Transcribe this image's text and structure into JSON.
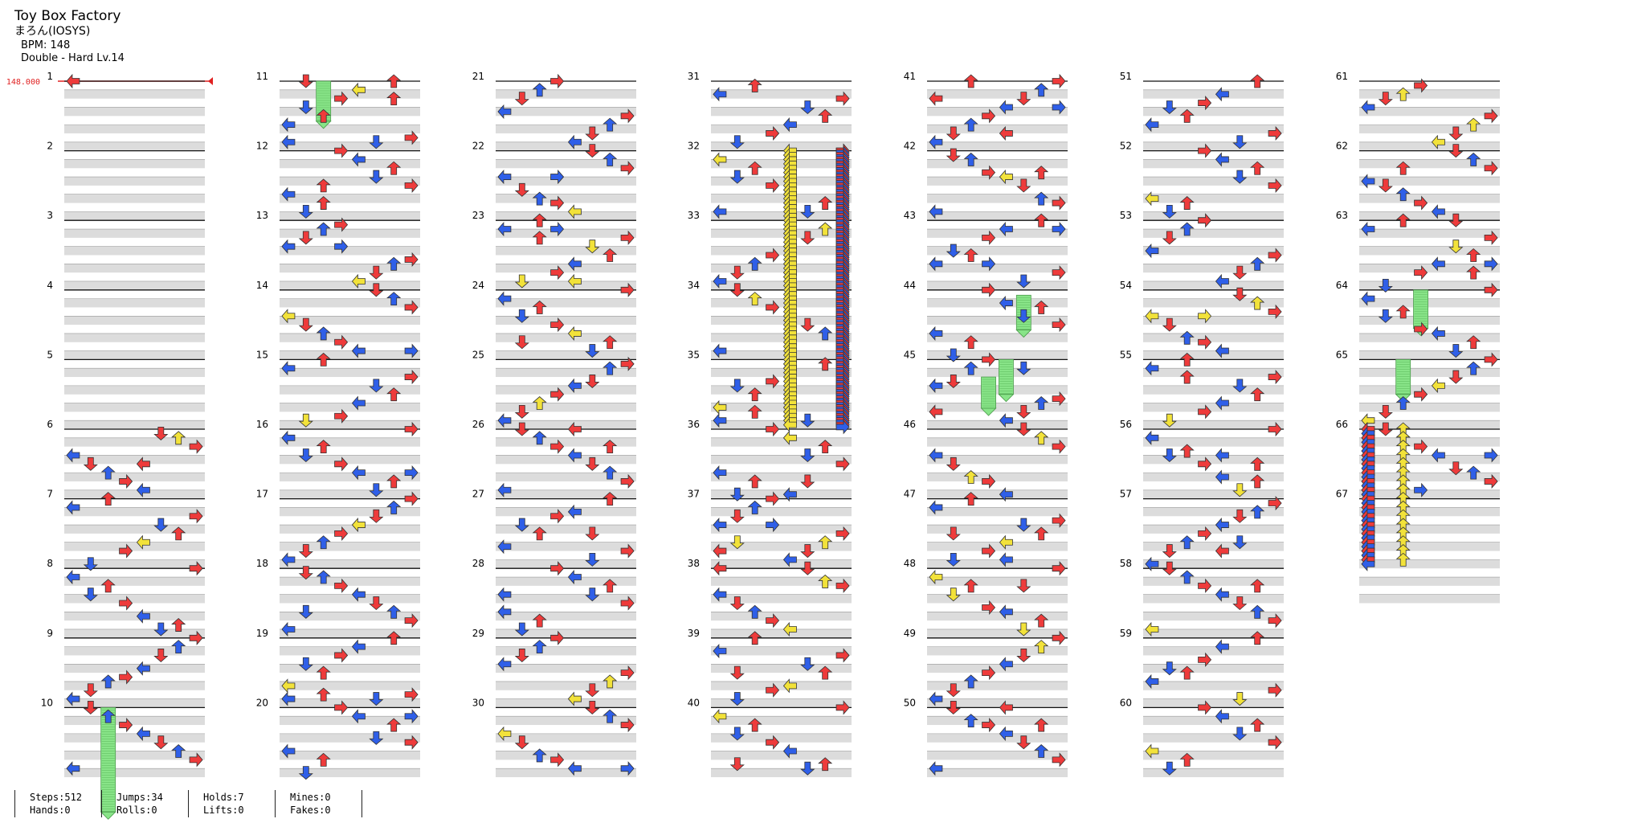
{
  "song": {
    "title": "Toy Box Factory",
    "artist": "まろん(IOSYS)",
    "bpm_text": "BPM: 148",
    "difficulty_text": "Double - Hard Lv.14"
  },
  "bpm_marker": "148.000",
  "measure_count": 67,
  "stats": {
    "steps": "Steps:512",
    "hands": "Hands:0",
    "jumps": "Jumps:34",
    "rolls": "Rolls:0",
    "holds": "Holds:7",
    "lifts": "Lifts:0",
    "mines": "Mines:0",
    "fakes": "Fakes:0"
  },
  "colors": {
    "quarter": "#ee3b3b",
    "eighth": "#2f5fe8",
    "sixteenth": "#f2e23a",
    "hold": "#88e488",
    "bpm": "#e02020",
    "band": "#dcdcdc"
  },
  "columns": [
    "left-1",
    "down-1",
    "up-1",
    "right-1",
    "left-2",
    "down-2",
    "up-2",
    "right-2"
  ]
}
